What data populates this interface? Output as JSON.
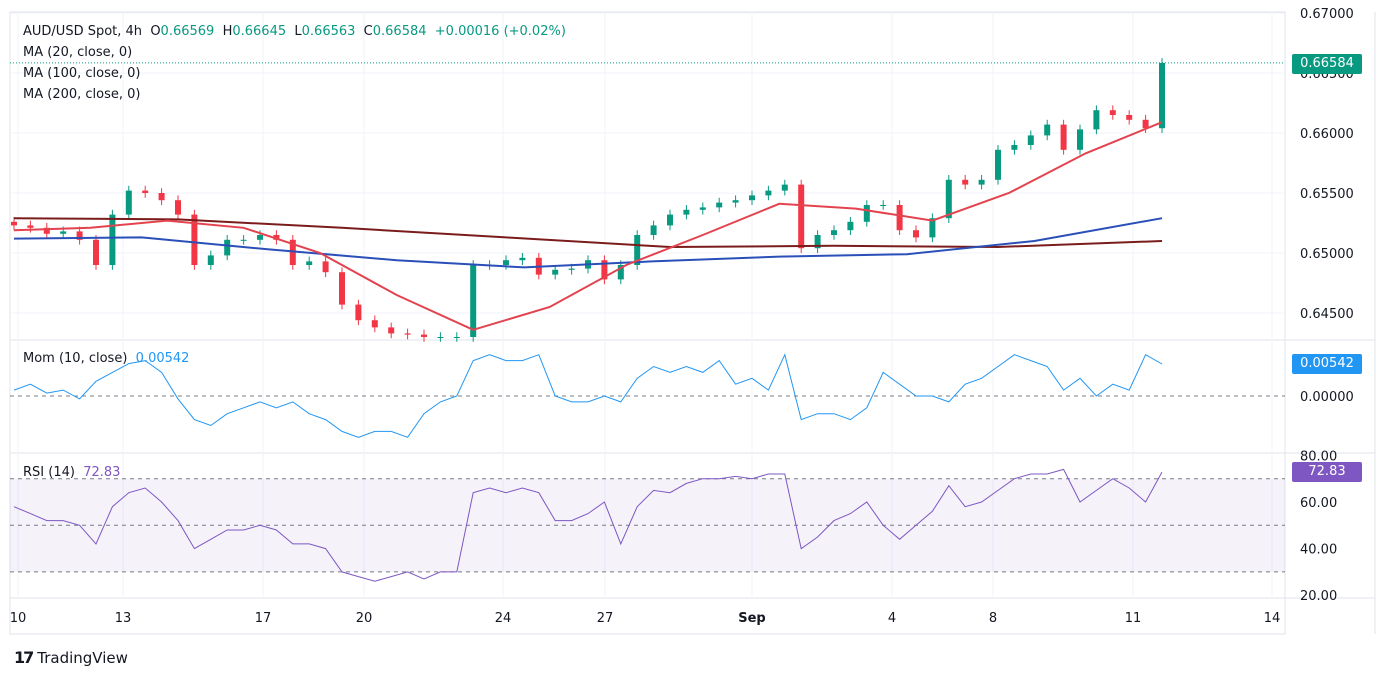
{
  "header": {
    "symbol": "AUD/USD Spot, 4h",
    "o_label": "O",
    "o": "0.66569",
    "h_label": "H",
    "h": "0.66645",
    "l_label": "L",
    "l": "0.66563",
    "c_label": "C",
    "c": "0.66584",
    "change": "+0.00016 (+0.02%)"
  },
  "indicators": {
    "ma20": "MA (20, close, 0)",
    "ma100": "MA (100, close, 0)",
    "ma200": "MA (200, close, 0)",
    "mom": "Mom (10, close)",
    "mom_value": "0.00542",
    "rsi": "RSI (14)",
    "rsi_value": "72.83"
  },
  "badges": {
    "price": "0.66584",
    "mom": "0.00542",
    "rsi": "72.83"
  },
  "brand": "TradingView",
  "colors": {
    "up": "#089981",
    "down": "#f23645",
    "ma20": "#e3434f",
    "ma100": "#2a4fb8",
    "ma200": "#7b1c1c",
    "mom": "#2196f3",
    "rsi": "#7e57c2"
  },
  "chart_data": {
    "type": "candlestick",
    "price_axis": {
      "ticks": [
        "0.67000",
        "0.66500",
        "0.66000",
        "0.65500",
        "0.65000",
        "0.64500"
      ],
      "range": [
        0.6425,
        0.6705
      ]
    },
    "mom_axis": {
      "ticks": [
        "0.00000"
      ]
    },
    "rsi_axis": {
      "ticks": [
        "80.00",
        "60.00",
        "40.00",
        "20.00"
      ],
      "range": [
        20,
        80
      ],
      "bands": [
        70,
        50,
        30
      ]
    },
    "time_axis": {
      "ticks": [
        "10",
        "13",
        "17",
        "20",
        "24",
        "27",
        "Sep",
        "4",
        "8",
        "11",
        "14"
      ]
    },
    "closes": [
      0.6523,
      0.6521,
      0.6516,
      0.6518,
      0.6511,
      0.649,
      0.6532,
      0.6552,
      0.655,
      0.6544,
      0.6532,
      0.649,
      0.6498,
      0.6511,
      0.6511,
      0.6515,
      0.6511,
      0.649,
      0.6493,
      0.6484,
      0.6457,
      0.6444,
      0.6438,
      0.6433,
      0.6432,
      0.643,
      0.643,
      0.643,
      0.649,
      0.649,
      0.6494,
      0.6496,
      0.6482,
      0.6486,
      0.6487,
      0.6494,
      0.6478,
      0.649,
      0.6515,
      0.6523,
      0.6532,
      0.6536,
      0.6538,
      0.6542,
      0.6544,
      0.6548,
      0.6552,
      0.6557,
      0.6504,
      0.6515,
      0.6519,
      0.6526,
      0.654,
      0.654,
      0.6519,
      0.6513,
      0.6529,
      0.6561,
      0.6557,
      0.6561,
      0.6586,
      0.659,
      0.6598,
      0.6607,
      0.6586,
      0.6603,
      0.6619,
      0.6615,
      0.6611,
      0.6604,
      0.66584
    ],
    "ma20": [
      0.6519,
      0.6521,
      0.6527,
      0.6521,
      0.65,
      0.6465,
      0.6436,
      0.6455,
      0.649,
      0.6515,
      0.6541,
      0.6537,
      0.6527,
      0.655,
      0.6583,
      0.6609
    ],
    "ma100": [
      0.6512,
      0.6513,
      0.6503,
      0.6494,
      0.6488,
      0.6493,
      0.6497,
      0.6499,
      0.651,
      0.6529
    ],
    "ma200": [
      0.6529,
      0.6528,
      0.6521,
      0.6513,
      0.6505,
      0.6506,
      0.6505,
      0.651
    ],
    "momentum": [
      0.001,
      0.002,
      0.0005,
      0.001,
      -0.0005,
      0.0025,
      0.004,
      0.0055,
      0.006,
      0.004,
      -0.0005,
      -0.004,
      -0.005,
      -0.003,
      -0.002,
      -0.001,
      -0.002,
      -0.001,
      -0.003,
      -0.004,
      -0.006,
      -0.007,
      -0.006,
      -0.006,
      -0.007,
      -0.003,
      -0.001,
      0,
      0.006,
      0.007,
      0.006,
      0.006,
      0.007,
      0,
      -0.001,
      -0.001,
      0,
      -0.001,
      0.003,
      0.005,
      0.004,
      0.005,
      0.004,
      0.006,
      0.002,
      0.003,
      0.001,
      0.007,
      -0.004,
      -0.003,
      -0.003,
      -0.004,
      -0.002,
      0.004,
      0.002,
      0,
      0,
      -0.001,
      0.002,
      0.003,
      0.005,
      0.007,
      0.006,
      0.005,
      0.001,
      0.003,
      0,
      0.002,
      0.001,
      0.007,
      0.00542
    ],
    "rsi": [
      58,
      55,
      52,
      52,
      50,
      42,
      58,
      64,
      66,
      60,
      52,
      40,
      44,
      48,
      48,
      50,
      48,
      42,
      42,
      40,
      30,
      28,
      26,
      28,
      30,
      27,
      30,
      30,
      64,
      66,
      64,
      66,
      64,
      52,
      52,
      55,
      60,
      42,
      58,
      65,
      64,
      68,
      70,
      70,
      71,
      70,
      72,
      72,
      40,
      45,
      52,
      55,
      60,
      50,
      44,
      50,
      56,
      67,
      58,
      60,
      65,
      70,
      72,
      72,
      74,
      60,
      65,
      70,
      66,
      60,
      72.83
    ]
  }
}
